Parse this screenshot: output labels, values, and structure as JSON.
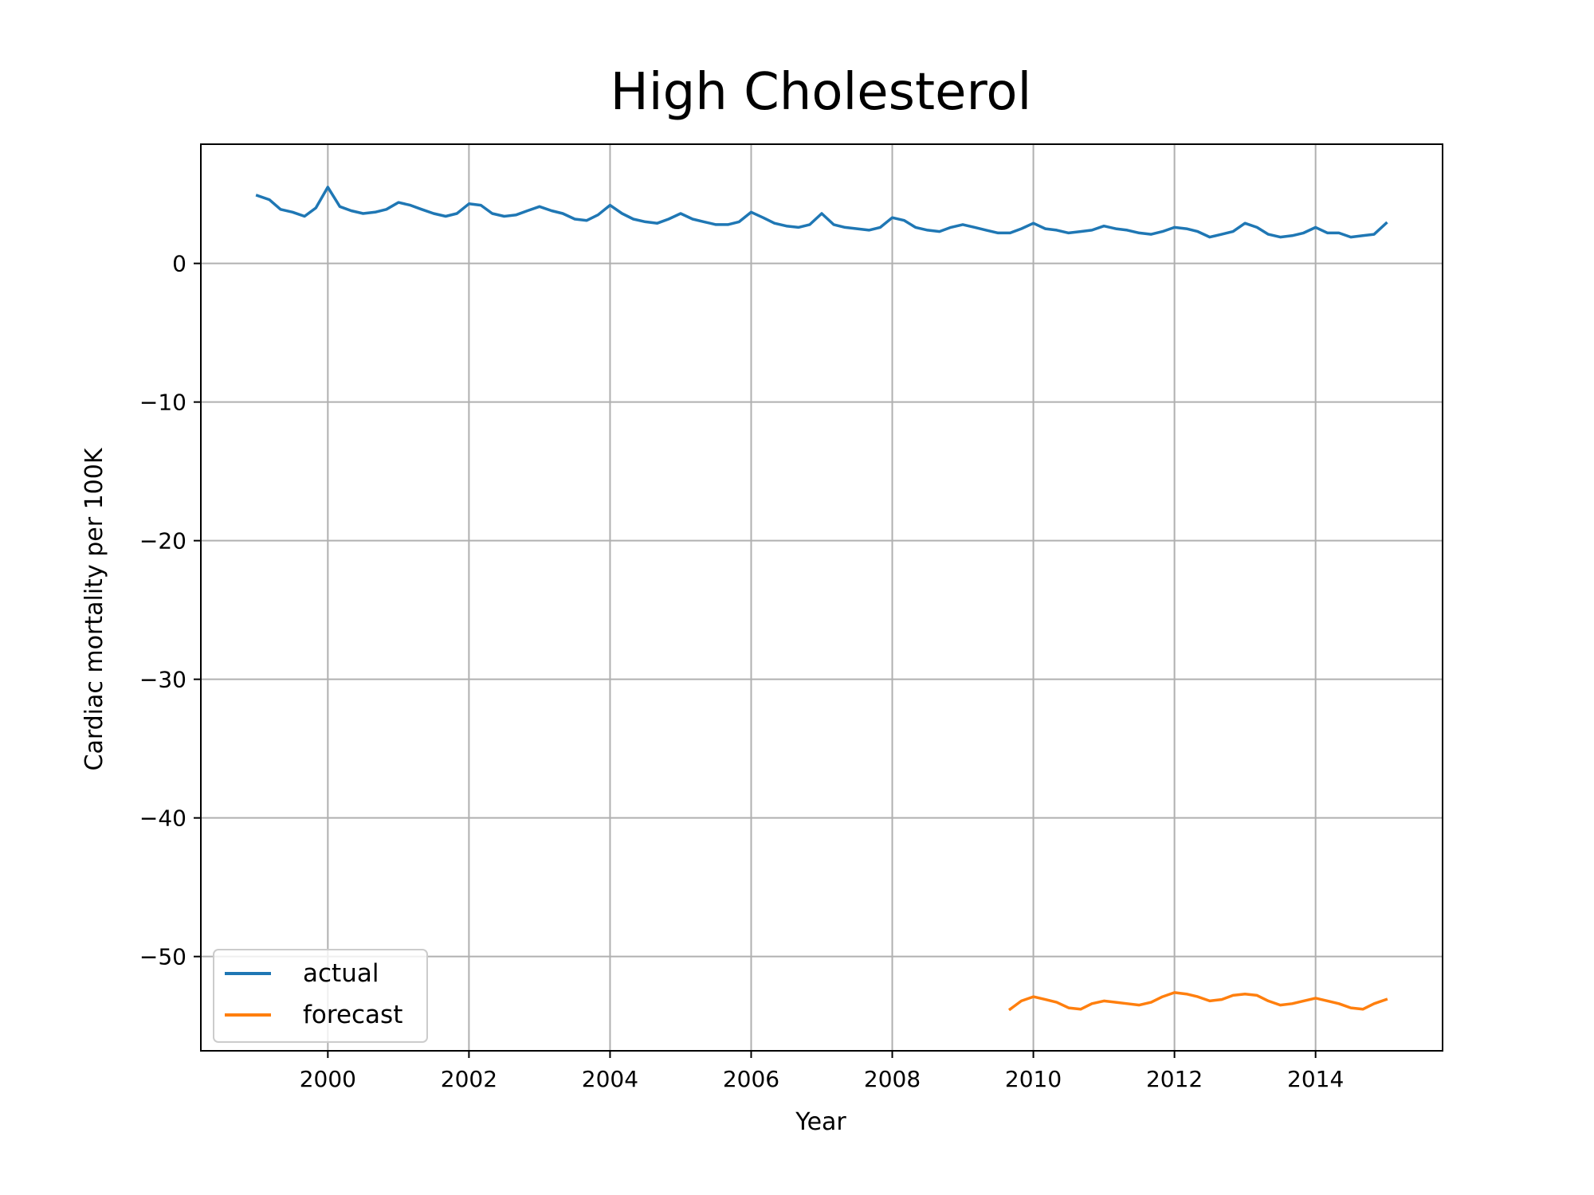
{
  "chart_data": {
    "type": "line",
    "title": "High Cholesterol",
    "xlabel": "Year",
    "ylabel": "Cardiac mortality per 100K",
    "xlim": [
      1998.2,
      2015.8
    ],
    "ylim": [
      -56.8,
      8.6
    ],
    "xticks": [
      2000,
      2002,
      2004,
      2006,
      2008,
      2010,
      2012,
      2014
    ],
    "yticks": [
      -50,
      -40,
      -30,
      -20,
      -10,
      0
    ],
    "grid": true,
    "legend_position": "lower-left",
    "series": [
      {
        "name": "actual",
        "color": "#1f77b4",
        "x": [
          1999.0,
          1999.17,
          1999.33,
          1999.5,
          1999.67,
          1999.83,
          2000.0,
          2000.17,
          2000.33,
          2000.5,
          2000.67,
          2000.83,
          2001.0,
          2001.17,
          2001.33,
          2001.5,
          2001.67,
          2001.83,
          2002.0,
          2002.17,
          2002.33,
          2002.5,
          2002.67,
          2002.83,
          2003.0,
          2003.17,
          2003.33,
          2003.5,
          2003.67,
          2003.83,
          2004.0,
          2004.17,
          2004.33,
          2004.5,
          2004.67,
          2004.83,
          2005.0,
          2005.17,
          2005.33,
          2005.5,
          2005.67,
          2005.83,
          2006.0,
          2006.17,
          2006.33,
          2006.5,
          2006.67,
          2006.83,
          2007.0,
          2007.17,
          2007.33,
          2007.5,
          2007.67,
          2007.83,
          2008.0,
          2008.17,
          2008.33,
          2008.5,
          2008.67,
          2008.83,
          2009.0,
          2009.17,
          2009.33,
          2009.5,
          2009.67,
          2009.83,
          2010.0,
          2010.17,
          2010.33,
          2010.5,
          2010.67,
          2010.83,
          2011.0,
          2011.17,
          2011.33,
          2011.5,
          2011.67,
          2011.83,
          2012.0,
          2012.17,
          2012.33,
          2012.5,
          2012.67,
          2012.83,
          2013.0,
          2013.17,
          2013.33,
          2013.5,
          2013.67,
          2013.83,
          2014.0,
          2014.17,
          2014.33,
          2014.5,
          2014.67,
          2014.83,
          2015.0
        ],
        "values": [
          4.9,
          4.6,
          3.9,
          3.7,
          3.4,
          4.0,
          5.5,
          4.1,
          3.8,
          3.6,
          3.7,
          3.9,
          4.4,
          4.2,
          3.9,
          3.6,
          3.4,
          3.6,
          4.3,
          4.2,
          3.6,
          3.4,
          3.5,
          3.8,
          4.1,
          3.8,
          3.6,
          3.2,
          3.1,
          3.5,
          4.2,
          3.6,
          3.2,
          3.0,
          2.9,
          3.2,
          3.6,
          3.2,
          3.0,
          2.8,
          2.8,
          3.0,
          3.7,
          3.3,
          2.9,
          2.7,
          2.6,
          2.8,
          3.6,
          2.8,
          2.6,
          2.5,
          2.4,
          2.6,
          3.3,
          3.1,
          2.6,
          2.4,
          2.3,
          2.6,
          2.8,
          2.6,
          2.4,
          2.2,
          2.2,
          2.5,
          2.9,
          2.5,
          2.4,
          2.2,
          2.3,
          2.4,
          2.7,
          2.5,
          2.4,
          2.2,
          2.1,
          2.3,
          2.6,
          2.5,
          2.3,
          1.9,
          2.1,
          2.3,
          2.9,
          2.6,
          2.1,
          1.9,
          2.0,
          2.2,
          2.6,
          2.2,
          2.2,
          1.9,
          2.0,
          2.1,
          2.9
        ]
      },
      {
        "name": "forecast",
        "color": "#ff7f0e",
        "x": [
          2009.67,
          2009.83,
          2010.0,
          2010.17,
          2010.33,
          2010.5,
          2010.67,
          2010.83,
          2011.0,
          2011.17,
          2011.33,
          2011.5,
          2011.67,
          2011.83,
          2012.0,
          2012.17,
          2012.33,
          2012.5,
          2012.67,
          2012.83,
          2013.0,
          2013.17,
          2013.33,
          2013.5,
          2013.67,
          2013.83,
          2014.0,
          2014.17,
          2014.33,
          2014.5,
          2014.67,
          2014.83,
          2015.0
        ],
        "values": [
          -53.8,
          -53.2,
          -52.9,
          -53.1,
          -53.3,
          -53.7,
          -53.8,
          -53.4,
          -53.2,
          -53.3,
          -53.4,
          -53.5,
          -53.3,
          -52.9,
          -52.6,
          -52.7,
          -52.9,
          -53.2,
          -53.1,
          -52.8,
          -52.7,
          -52.8,
          -53.2,
          -53.5,
          -53.4,
          -53.2,
          -53.0,
          -53.2,
          -53.4,
          -53.7,
          -53.8,
          -53.4,
          -53.1
        ]
      }
    ]
  }
}
